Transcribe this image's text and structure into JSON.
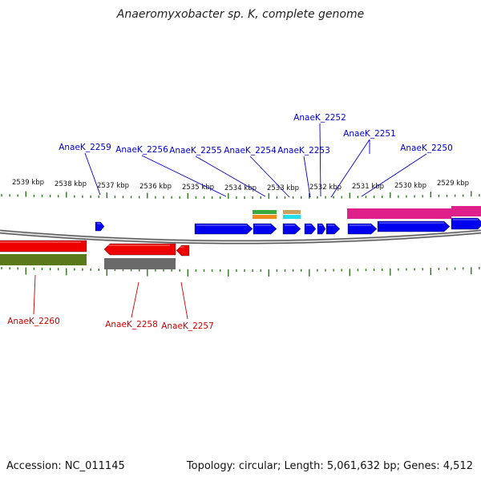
{
  "title": "Anaeromyxobacter sp. K, complete genome",
  "footer": {
    "accession": "Accession: NC_011145",
    "topology": "Topology: circular; Length: 5,061,632 bp; Genes: 4,512"
  },
  "axis": {
    "labels": [
      "2539 kbp",
      "2538 kbp",
      "2537 kbp",
      "2536 kbp",
      "2535 kbp",
      "2534 kbp",
      "2533 kbp",
      "2532 kbp",
      "2531 kbp",
      "2530 kbp",
      "2529 kbp"
    ]
  },
  "colors": {
    "forward_gene": "#0000ee",
    "reverse_gene": "#ee0000",
    "forward_label": "#0000cc",
    "reverse_label": "#cc0000",
    "tick": "#2a7a1a",
    "backbone": "#888888",
    "pink": "#e0208a",
    "olive": "#5a7a1a",
    "gray_track": "#6a6a6a",
    "green": "#3aa83a",
    "orange": "#f08a1a",
    "tan": "#c8a060",
    "cyan": "#22dde8"
  },
  "forward_genes": [
    {
      "name": "AnaeK_2259"
    },
    {
      "name": "AnaeK_2256"
    },
    {
      "name": "AnaeK_2255"
    },
    {
      "name": "AnaeK_2254"
    },
    {
      "name": "AnaeK_2253"
    },
    {
      "name": "AnaeK_2252"
    },
    {
      "name": "AnaeK_2251"
    },
    {
      "name": "AnaeK_2250"
    }
  ],
  "reverse_genes": [
    {
      "name": "AnaeK_2260"
    },
    {
      "name": "AnaeK_2258"
    },
    {
      "name": "AnaeK_2257"
    }
  ]
}
